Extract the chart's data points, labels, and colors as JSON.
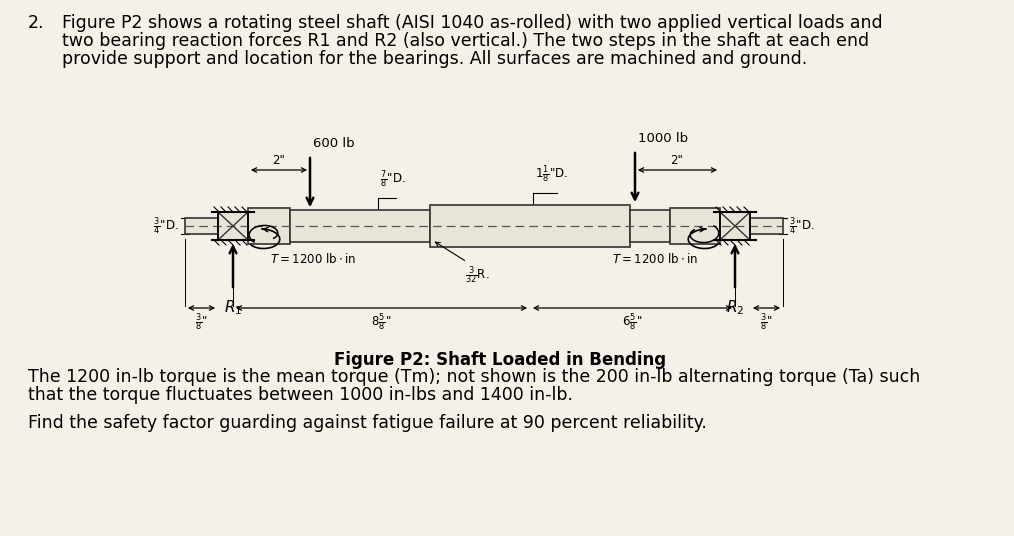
{
  "background_color": "#f5f0e8",
  "paragraph_number": "2.",
  "paragraph_text_line1": "Figure P2 shows a rotating steel shaft (AISI 1040 as-rolled) with two applied vertical loads and",
  "paragraph_text_line2": "two bearing reaction forces R1 and R2 (also vertical.) The two steps in the shaft at each end",
  "paragraph_text_line3": "provide support and location for the bearings. All surfaces are machined and ground.",
  "figure_caption": "Figure P2: Shaft Loaded in Bending",
  "bottom_text_line1": "The 1200 in-lb torque is the mean torque (Tm); not shown is the 200 in-lb alternating torque (Ta) such",
  "bottom_text_line2": "that the torque fluctuates between 1000 in-lbs and 1400 in-lb.",
  "bottom_text_line3": "Find the safety factor guarding against fatigue failure at 90 percent reliability.",
  "font_size_body": 12.5,
  "font_size_diagram": 9,
  "font_size_caption": 11.5
}
